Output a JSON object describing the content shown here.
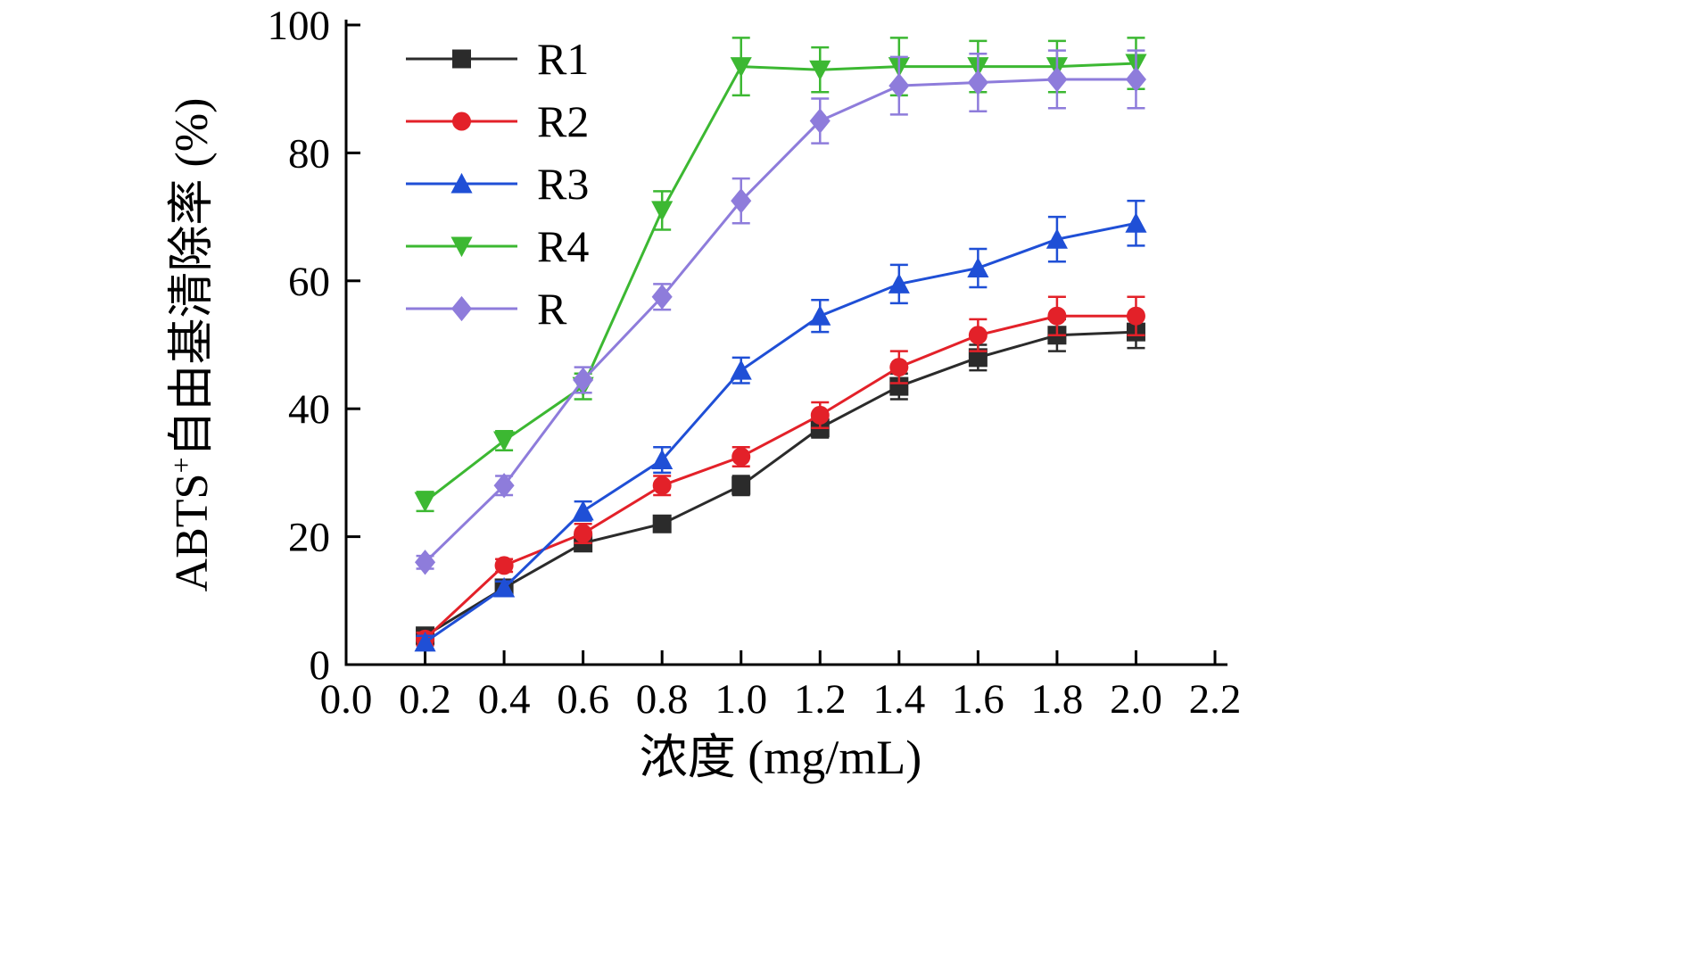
{
  "chart_data": {
    "type": "line",
    "x": [
      0.2,
      0.4,
      0.6,
      0.8,
      1.0,
      1.2,
      1.4,
      1.6,
      1.8,
      2.0
    ],
    "series": [
      {
        "name": "R1",
        "color": "#2b2b2b",
        "marker": "square",
        "values": [
          4.5,
          12,
          19,
          22,
          28,
          37,
          43.5,
          48,
          51.5,
          52
        ],
        "errors": [
          1,
          1,
          1,
          1,
          1.5,
          1.5,
          2,
          2,
          2.5,
          2.5
        ]
      },
      {
        "name": "R2",
        "color": "#e32129",
        "marker": "circle",
        "values": [
          4,
          15.5,
          20.5,
          28,
          32.5,
          39,
          46.5,
          51.5,
          54.5,
          54.5
        ],
        "errors": [
          1,
          1,
          1.5,
          1.5,
          1.5,
          2,
          2.5,
          2.5,
          3,
          3
        ]
      },
      {
        "name": "R3",
        "color": "#1f4fd6",
        "marker": "triangle-up",
        "values": [
          3.5,
          12,
          24,
          32,
          46,
          54.5,
          59.5,
          62,
          66.5,
          69
        ],
        "errors": [
          1,
          1,
          1.5,
          2,
          2,
          2.5,
          3,
          3,
          3.5,
          3.5
        ]
      },
      {
        "name": "R4",
        "color": "#3cb832",
        "marker": "triangle-down",
        "values": [
          25.5,
          35,
          43.5,
          71,
          93.5,
          93,
          93.5,
          93.5,
          93.5,
          94
        ],
        "errors": [
          1.5,
          1.5,
          2,
          3,
          4.5,
          3.5,
          4.5,
          4,
          4,
          4
        ]
      },
      {
        "name": "R",
        "color": "#8e7cdb",
        "marker": "diamond",
        "values": [
          16,
          28,
          44.5,
          57.5,
          72.5,
          85,
          90.5,
          91,
          91.5,
          91.5
        ],
        "errors": [
          1,
          1.5,
          2,
          2,
          3.5,
          3.5,
          4.5,
          4.5,
          4.5,
          4.5
        ]
      }
    ],
    "title": "",
    "xlabel": "浓度 (mg/mL)",
    "ylabel_parts": {
      "prefix": "ABTS",
      "superscript": "+",
      "suffix": "自由基清除率 (%)"
    },
    "xlim": [
      0,
      2.2
    ],
    "ylim": [
      0,
      100
    ],
    "x_ticks": [
      0.0,
      0.2,
      0.4,
      0.6,
      0.8,
      1.0,
      1.2,
      1.4,
      1.6,
      1.8,
      2.0,
      2.2
    ],
    "x_tick_labels": [
      "0.0",
      "0.2",
      "0.4",
      "0.6",
      "0.8",
      "1.0",
      "1.2",
      "1.4",
      "1.6",
      "1.8",
      "2.0",
      "2.2"
    ],
    "y_ticks": [
      0,
      20,
      40,
      60,
      80,
      100
    ],
    "y_tick_labels": [
      "0",
      "20",
      "40",
      "60",
      "80",
      "100"
    ],
    "grid": false,
    "legend_position": "top-left",
    "legend_labels": [
      "R1",
      "R2",
      "R3",
      "R4",
      "R"
    ]
  }
}
